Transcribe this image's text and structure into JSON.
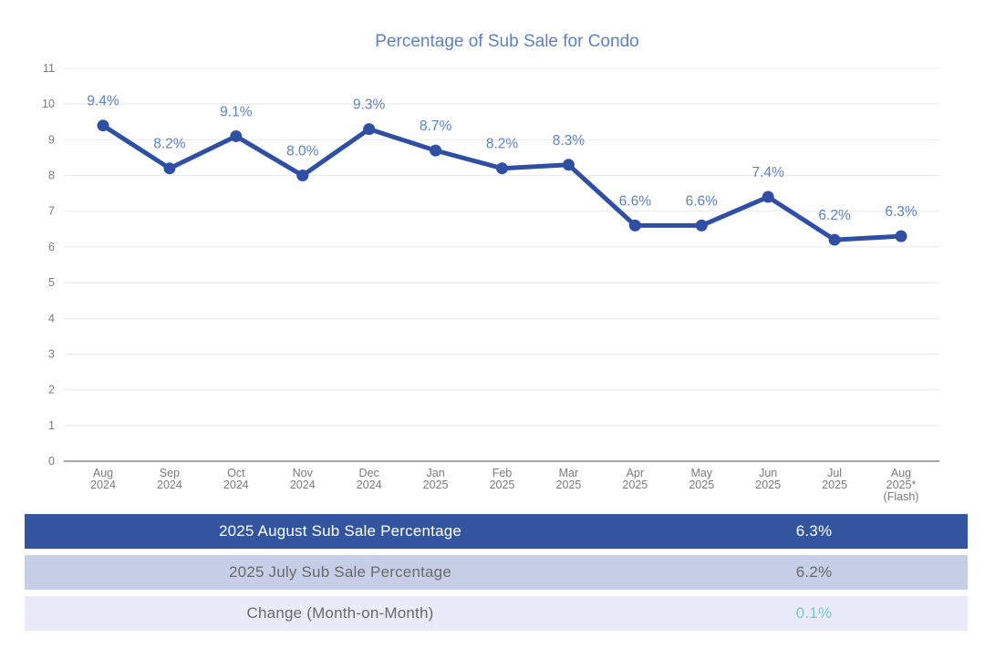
{
  "chart_data": {
    "type": "line",
    "title": "Percentage of Sub Sale for Condo",
    "categories": [
      [
        "Aug",
        "2024"
      ],
      [
        "Sep",
        "2024"
      ],
      [
        "Oct",
        "2024"
      ],
      [
        "Nov",
        "2024"
      ],
      [
        "Dec",
        "2024"
      ],
      [
        "Jan",
        "2025"
      ],
      [
        "Feb",
        "2025"
      ],
      [
        "Mar",
        "2025"
      ],
      [
        "Apr",
        "2025"
      ],
      [
        "May",
        "2025"
      ],
      [
        "Jun",
        "2025"
      ],
      [
        "Jul",
        "2025"
      ],
      [
        "Aug",
        "2025*",
        "(Flash)"
      ]
    ],
    "values": [
      9.4,
      8.2,
      9.1,
      8.0,
      9.3,
      8.7,
      8.2,
      8.3,
      6.6,
      6.6,
      7.4,
      6.2,
      6.3
    ],
    "data_labels": [
      "9.4%",
      "8.2%",
      "9.1%",
      "8.0%",
      "9.3%",
      "8.7%",
      "8.2%",
      "8.3%",
      "6.6%",
      "6.6%",
      "7.4%",
      "6.2%",
      "6.3%"
    ],
    "xlabel": "",
    "ylabel": "",
    "ylim": [
      0,
      11
    ],
    "y_ticks": [
      0,
      1,
      2,
      3,
      4,
      5,
      6,
      7,
      8,
      9,
      10,
      11
    ],
    "grid": true,
    "legend": "none",
    "colors": {
      "line": "#2e4fa3",
      "marker": "#2e4fa3",
      "data_label": "#5c80c6",
      "title": "#5c80c6",
      "axis_text": "#7a7a7a",
      "gridline": "#e9e9e9",
      "axis_line": "#8c8c8c"
    }
  },
  "table": {
    "rows": [
      {
        "label": "2025 August Sub Sale Percentage",
        "value": "6.3%",
        "bg": "#33549e",
        "label_color": "#ffffff",
        "value_color": "#ffffff"
      },
      {
        "label": "2025 July Sub Sale Percentage",
        "value": "6.2%",
        "bg": "#c6cfe7",
        "label_color": "#6a6a6a",
        "value_color": "#6a6a6a"
      },
      {
        "label": "Change (Month-on-Month)",
        "value": "0.1%",
        "bg": "#e9ecf8",
        "label_color": "#6a6a6a",
        "value_color": "#7cc5dc"
      }
    ]
  }
}
